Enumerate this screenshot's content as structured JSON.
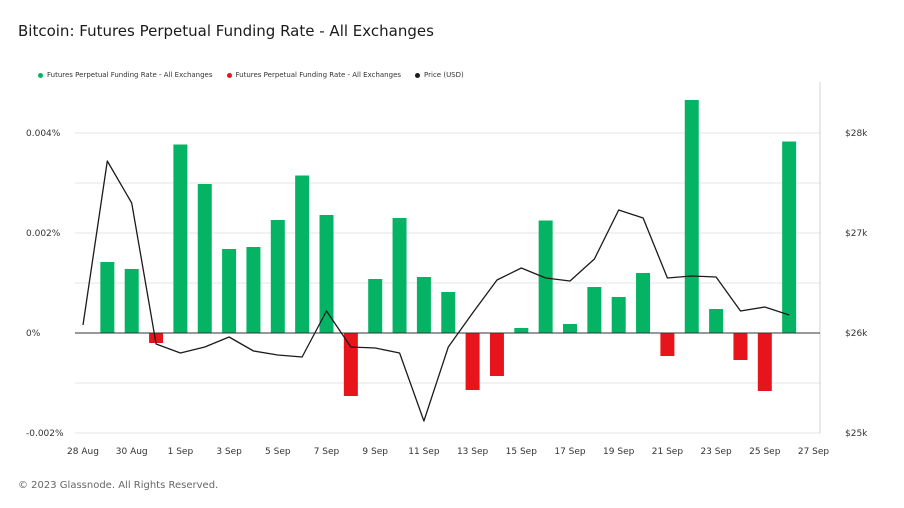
{
  "title": "Bitcoin: Futures Perpetual Funding Rate - All Exchanges",
  "footer": "© 2023 Glassnode. All Rights Reserved.",
  "colors": {
    "positive": "#04b464",
    "negative": "#e8141c",
    "price": "#1b1b1b",
    "grid": "#e6e6e6",
    "zero": "#333333"
  },
  "legend": [
    {
      "label": "Futures Perpetual Funding Rate - All Exchanges",
      "color": "#04b464"
    },
    {
      "label": "Futures Perpetual Funding Rate - All Exchanges",
      "color": "#e8141c"
    },
    {
      "label": "Price (USD)",
      "color": "#1b1b1b"
    }
  ],
  "chart_data": {
    "type": "bar",
    "title": "Bitcoin: Futures Perpetual Funding Rate - All Exchanges",
    "x_tick_labels": [
      "28 Aug",
      "30 Aug",
      "1 Sep",
      "3 Sep",
      "5 Sep",
      "7 Sep",
      "9 Sep",
      "11 Sep",
      "13 Sep",
      "15 Sep",
      "17 Sep",
      "19 Sep",
      "21 Sep",
      "23 Sep",
      "25 Sep",
      "27 Sep"
    ],
    "y_left_ticks": [
      "0.004%",
      "0.002%",
      "0%",
      "-0.002%"
    ],
    "y_right_ticks": [
      "$28k",
      "$27k",
      "$26k",
      "$25k"
    ],
    "y_left_range": [
      -0.002,
      0.0045
    ],
    "y_right_range": [
      25000,
      28500
    ],
    "categories": [
      "28 Aug",
      "29 Aug",
      "30 Aug",
      "31 Aug",
      "1 Sep",
      "2 Sep",
      "3 Sep",
      "4 Sep",
      "5 Sep",
      "6 Sep",
      "7 Sep",
      "8 Sep",
      "9 Sep",
      "10 Sep",
      "11 Sep",
      "12 Sep",
      "13 Sep",
      "14 Sep",
      "15 Sep",
      "16 Sep",
      "17 Sep",
      "18 Sep",
      "19 Sep",
      "20 Sep",
      "21 Sep",
      "22 Sep",
      "23 Sep",
      "24 Sep",
      "25 Sep",
      "26 Sep",
      "27 Sep"
    ],
    "series": [
      {
        "name": "Futures Perpetual Funding Rate - All Exchanges",
        "axis": "left",
        "unit": "%",
        "values": [
          null,
          0.00142,
          0.00128,
          -0.0002,
          0.00377,
          0.00298,
          0.00168,
          0.00172,
          0.00226,
          0.00315,
          0.00236,
          -0.00126,
          0.00108,
          0.0023,
          0.00112,
          0.00082,
          -0.00114,
          -0.00086,
          0.0001,
          0.00225,
          0.00018,
          0.00092,
          0.00072,
          0.0012,
          -0.00046,
          0.00466,
          0.00048,
          -0.00054,
          -0.00116,
          0.00383,
          null
        ]
      },
      {
        "name": "Price (USD)",
        "axis": "right",
        "type": "line",
        "values": [
          26080,
          27720,
          27300,
          25890,
          25800,
          25860,
          25960,
          25820,
          25780,
          25760,
          26220,
          25860,
          25850,
          25800,
          25120,
          25860,
          26200,
          26530,
          26650,
          26550,
          26520,
          26740,
          27230,
          27150,
          26550,
          26570,
          26560,
          26220,
          26260,
          26180,
          null
        ]
      }
    ],
    "grid": true,
    "legend_position": "top-left"
  }
}
